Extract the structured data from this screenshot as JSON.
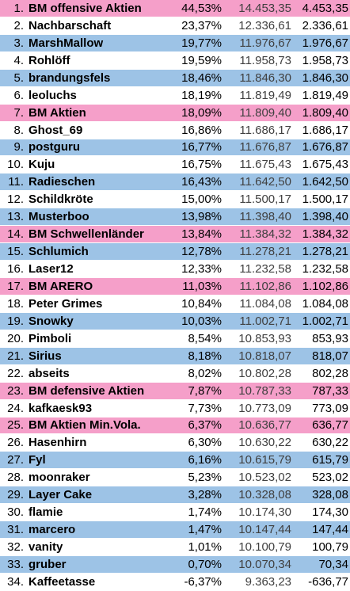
{
  "colors": {
    "white": "#ffffff",
    "blue": "#9dc3e6",
    "pink": "#f59fc9"
  },
  "rows": [
    {
      "rank": "1.",
      "name": "BM offensive Aktien",
      "pct": "44,53%",
      "value": "14.453,35",
      "gain": "4.453,35",
      "style": "pink"
    },
    {
      "rank": "2.",
      "name": "Nachbarschaft",
      "pct": "23,37%",
      "value": "12.336,61",
      "gain": "2.336,61",
      "style": "white"
    },
    {
      "rank": "3.",
      "name": "MarshMallow",
      "pct": "19,77%",
      "value": "11.976,67",
      "gain": "1.976,67",
      "style": "blue"
    },
    {
      "rank": "4.",
      "name": "Rohlöff",
      "pct": "19,59%",
      "value": "11.958,73",
      "gain": "1.958,73",
      "style": "white"
    },
    {
      "rank": "5.",
      "name": "brandungsfels",
      "pct": "18,46%",
      "value": "11.846,30",
      "gain": "1.846,30",
      "style": "blue"
    },
    {
      "rank": "6.",
      "name": "leoluchs",
      "pct": "18,19%",
      "value": "11.819,49",
      "gain": "1.819,49",
      "style": "white"
    },
    {
      "rank": "7.",
      "name": "BM Aktien",
      "pct": "18,09%",
      "value": "11.809,40",
      "gain": "1.809,40",
      "style": "pink"
    },
    {
      "rank": "8.",
      "name": "Ghost_69",
      "pct": "16,86%",
      "value": "11.686,17",
      "gain": "1.686,17",
      "style": "white"
    },
    {
      "rank": "9.",
      "name": "postguru",
      "pct": "16,77%",
      "value": "11.676,87",
      "gain": "1.676,87",
      "style": "blue"
    },
    {
      "rank": "10.",
      "name": "Kuju",
      "pct": "16,75%",
      "value": "11.675,43",
      "gain": "1.675,43",
      "style": "white"
    },
    {
      "rank": "11.",
      "name": "Radieschen",
      "pct": "16,43%",
      "value": "11.642,50",
      "gain": "1.642,50",
      "style": "blue"
    },
    {
      "rank": "12.",
      "name": "Schildkröte",
      "pct": "15,00%",
      "value": "11.500,17",
      "gain": "1.500,17",
      "style": "white"
    },
    {
      "rank": "13.",
      "name": "Musterboo",
      "pct": "13,98%",
      "value": "11.398,40",
      "gain": "1.398,40",
      "style": "blue"
    },
    {
      "rank": "14.",
      "name": "BM Schwellenländer",
      "pct": "13,84%",
      "value": "11.384,32",
      "gain": "1.384,32",
      "style": "pink"
    },
    {
      "rank": "15.",
      "name": "Schlumich",
      "pct": "12,78%",
      "value": "11.278,21",
      "gain": "1.278,21",
      "style": "blue"
    },
    {
      "rank": "16.",
      "name": "Laser12",
      "pct": "12,33%",
      "value": "11.232,58",
      "gain": "1.232,58",
      "style": "white"
    },
    {
      "rank": "17.",
      "name": "BM ARERO",
      "pct": "11,03%",
      "value": "11.102,86",
      "gain": "1.102,86",
      "style": "pink"
    },
    {
      "rank": "18.",
      "name": "Peter Grimes",
      "pct": "10,84%",
      "value": "11.084,08",
      "gain": "1.084,08",
      "style": "white"
    },
    {
      "rank": "19.",
      "name": "Snowky",
      "pct": "10,03%",
      "value": "11.002,71",
      "gain": "1.002,71",
      "style": "blue"
    },
    {
      "rank": "20.",
      "name": "Pimboli",
      "pct": "8,54%",
      "value": "10.853,93",
      "gain": "853,93",
      "style": "white"
    },
    {
      "rank": "21.",
      "name": "Sirius",
      "pct": "8,18%",
      "value": "10.818,07",
      "gain": "818,07",
      "style": "blue"
    },
    {
      "rank": "22.",
      "name": "abseits",
      "pct": "8,02%",
      "value": "10.802,28",
      "gain": "802,28",
      "style": "white"
    },
    {
      "rank": "23.",
      "name": "BM defensive Aktien",
      "pct": "7,87%",
      "value": "10.787,33",
      "gain": "787,33",
      "style": "pink"
    },
    {
      "rank": "24.",
      "name": "kafkaesk93",
      "pct": "7,73%",
      "value": "10.773,09",
      "gain": "773,09",
      "style": "white"
    },
    {
      "rank": "25.",
      "name": "BM Aktien Min.Vola.",
      "pct": "6,37%",
      "value": "10.636,77",
      "gain": "636,77",
      "style": "pink"
    },
    {
      "rank": "26.",
      "name": "Hasenhirn",
      "pct": "6,30%",
      "value": "10.630,22",
      "gain": "630,22",
      "style": "white"
    },
    {
      "rank": "27.",
      "name": "Fyl",
      "pct": "6,16%",
      "value": "10.615,79",
      "gain": "615,79",
      "style": "blue"
    },
    {
      "rank": "28.",
      "name": "moonraker",
      "pct": "5,23%",
      "value": "10.523,02",
      "gain": "523,02",
      "style": "white"
    },
    {
      "rank": "29.",
      "name": "Layer Cake",
      "pct": "3,28%",
      "value": "10.328,08",
      "gain": "328,08",
      "style": "blue"
    },
    {
      "rank": "30.",
      "name": "flamie",
      "pct": "1,74%",
      "value": "10.174,30",
      "gain": "174,30",
      "style": "white"
    },
    {
      "rank": "31.",
      "name": "marcero",
      "pct": "1,47%",
      "value": "10.147,44",
      "gain": "147,44",
      "style": "blue"
    },
    {
      "rank": "32.",
      "name": "vanity",
      "pct": "1,01%",
      "value": "10.100,79",
      "gain": "100,79",
      "style": "white"
    },
    {
      "rank": "33.",
      "name": "gruber",
      "pct": "0,70%",
      "value": "10.070,34",
      "gain": "70,34",
      "style": "blue"
    },
    {
      "rank": "34.",
      "name": "Kaffeetasse",
      "pct": "-6,37%",
      "value": "9.363,23",
      "gain": "-636,77",
      "style": "white"
    }
  ]
}
